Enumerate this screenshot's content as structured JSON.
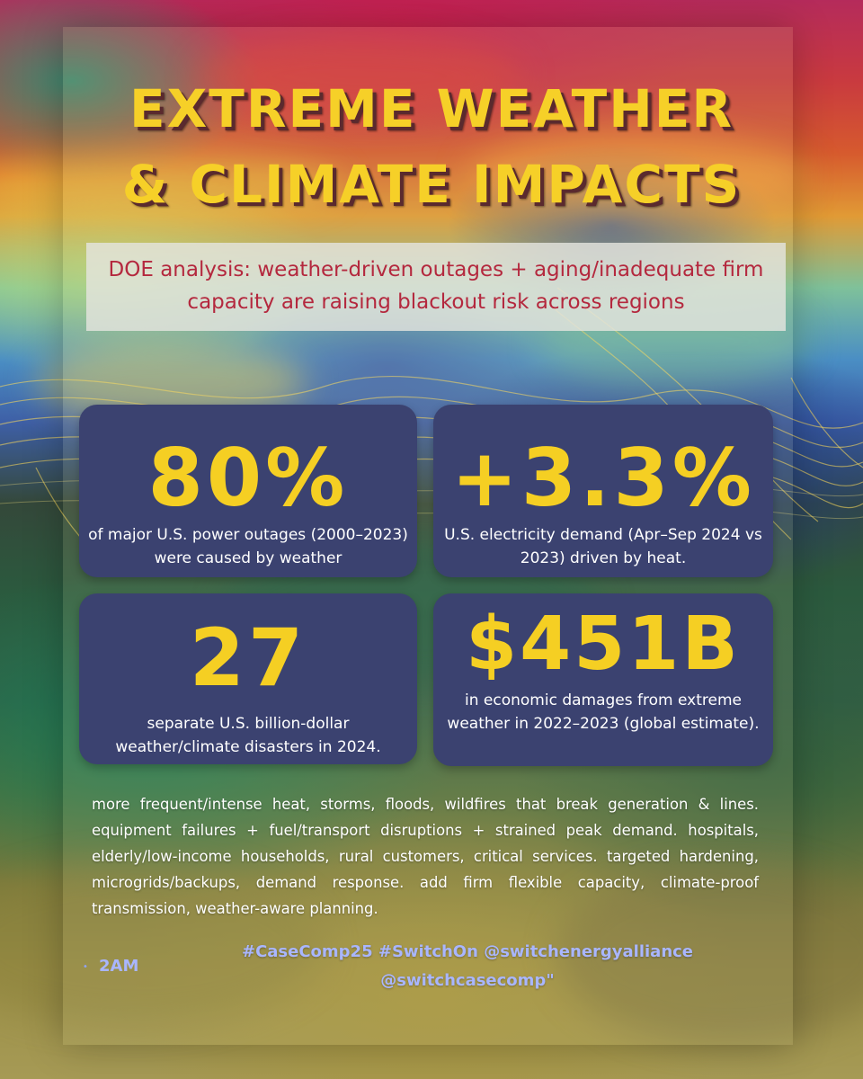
{
  "title": {
    "line1": "EXTREME WEATHER",
    "line2": "& CLIMATE IMPACTS"
  },
  "subtitle": "DOE analysis: weather-driven outages + aging/inadequate firm capacity are raising blackout risk across regions",
  "stats": {
    "outages": {
      "value": "80%",
      "description": "of major U.S. power outages (2000–2023) were caused by weather"
    },
    "demand": {
      "value": "+3.3%",
      "description": "U.S. electricity demand (Apr–Sep 2024 vs 2023) driven by heat."
    },
    "disasters": {
      "value": "27",
      "description": "separate U.S. billion-dollar weather/climate disasters in 2024."
    },
    "damages": {
      "value": "$451B",
      "description": "in economic damages from extreme weather in 2022–2023 (global estimate)."
    }
  },
  "body": "more frequent/intense heat, storms, floods, wildfires that break generation & lines. equipment failures + fuel/transport disruptions + strained peak demand. hospitals, elderly/low-income households, rural customers, critical services. targeted hardening, microgrids/backups, demand response. add firm flexible capacity, climate-proof transmission, weather-aware planning.",
  "footer": {
    "bullet": "•",
    "time": "2AM",
    "tags_line1": "#CaseComp25 #SwitchOn @switchenergyalliance",
    "tags_line2": "@switchcasecomp\""
  },
  "colors": {
    "headline": "#f6d028",
    "headline_shadow": "#5a2a2e",
    "card_bg": "#3b4270",
    "stat_value": "#f5cf23",
    "subtitle_text": "#b4283e",
    "footer_text": "#a9b6ff"
  }
}
